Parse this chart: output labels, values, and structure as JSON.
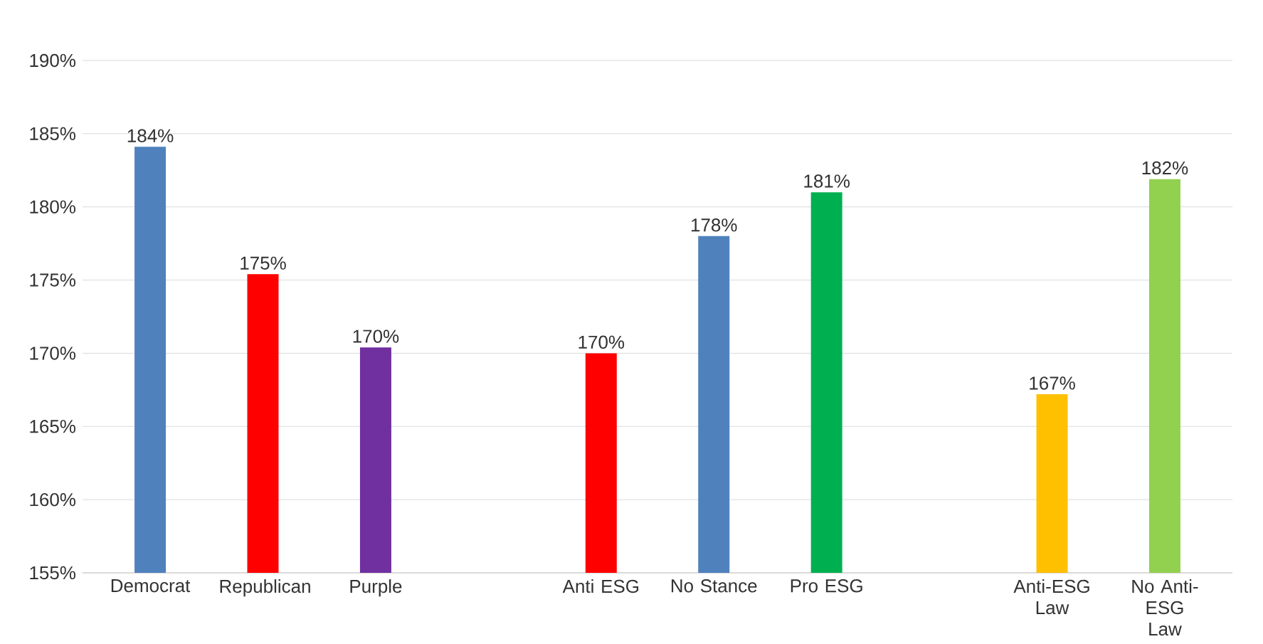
{
  "chart_data": {
    "type": "bar",
    "categories": [
      "Democrat",
      "Republican",
      "Purple",
      null,
      "Anti ESG",
      "No Stance",
      "Pro ESG",
      null,
      "Anti-ESG Law",
      "No Anti-ESG Law"
    ],
    "values": [
      184.1,
      175.4,
      170.4,
      null,
      170.0,
      178.0,
      181.0,
      null,
      167.2,
      181.9
    ],
    "colors": [
      "#4f81bd",
      "#ff0000",
      "#7030a0",
      null,
      "#ff0000",
      "#4f81bd",
      "#00b050",
      null,
      "#ffc000",
      "#92d050"
    ],
    "value_labels": [
      "184%",
      "175%",
      "170%",
      null,
      "170%",
      "178%",
      "181%",
      null,
      "167%",
      "182%"
    ],
    "ylim": [
      155,
      190
    ],
    "yticks": [
      {
        "value": 155,
        "label": "155%"
      },
      {
        "value": 160,
        "label": "160%"
      },
      {
        "value": 165,
        "label": "165%"
      },
      {
        "value": 170,
        "label": "170%"
      },
      {
        "value": 175,
        "label": "175%"
      },
      {
        "value": 180,
        "label": "180%"
      },
      {
        "value": 185,
        "label": "185%"
      },
      {
        "value": 190,
        "label": "190%"
      }
    ],
    "grid": "y"
  }
}
